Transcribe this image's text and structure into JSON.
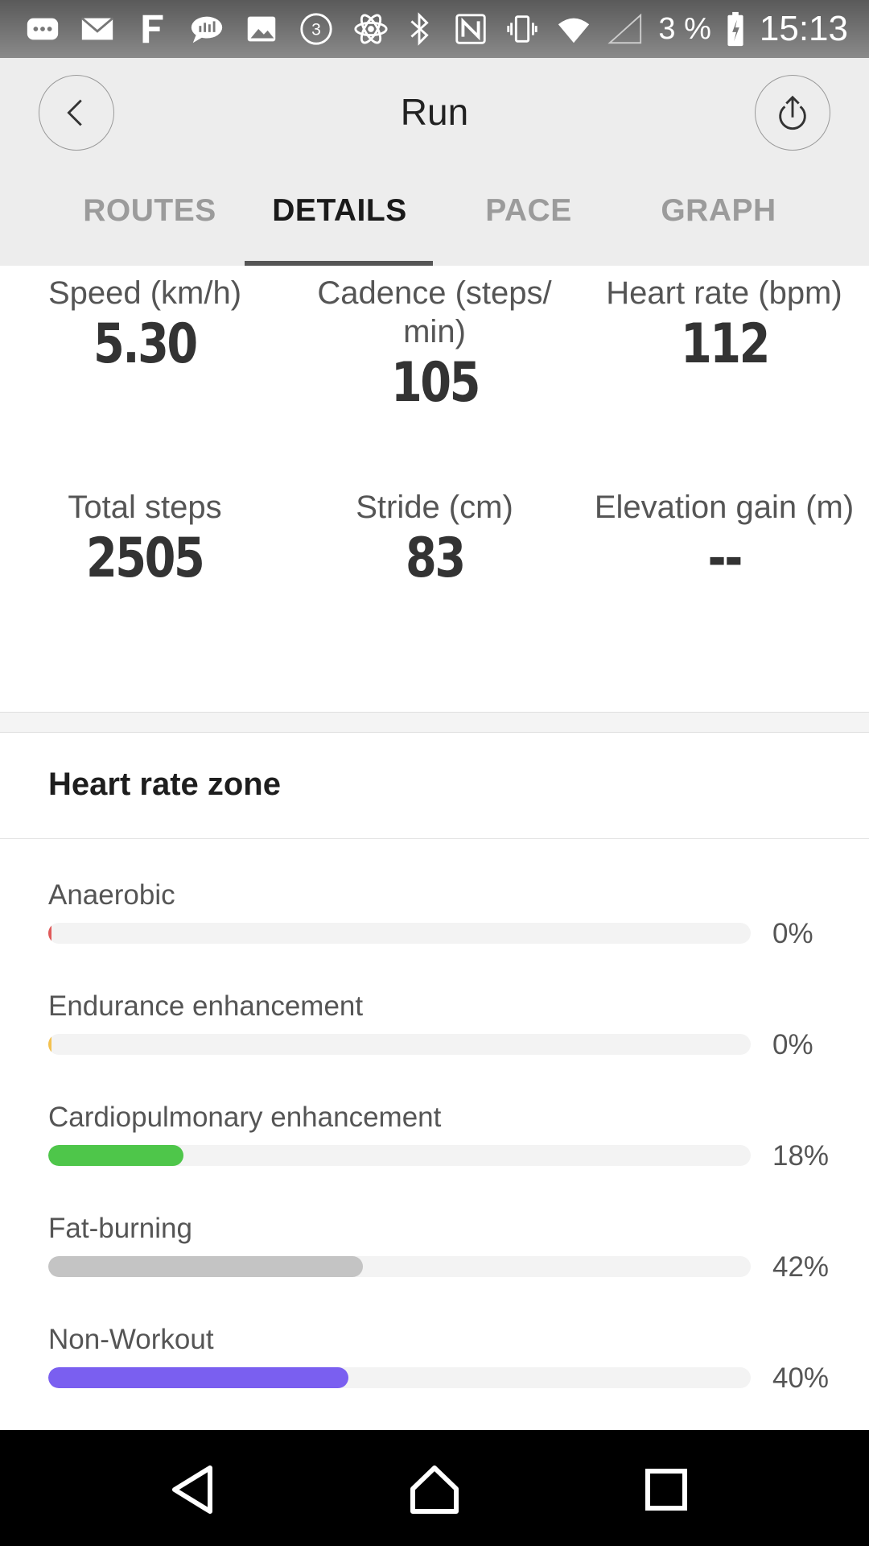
{
  "status_bar": {
    "battery_text": "3 %",
    "time": "15:13",
    "icons": [
      "chat-icon",
      "mail-icon",
      "f-app-icon",
      "message-icon",
      "image-icon",
      "circle-3-icon",
      "atom-icon",
      "bluetooth-icon",
      "nfc-icon",
      "vibrate-icon",
      "wifi-icon",
      "signal-icon",
      "battery-icon"
    ],
    "badge": "3"
  },
  "header": {
    "title": "Run",
    "tabs": [
      {
        "label": "ROUTES",
        "active": false
      },
      {
        "label": "DETAILS",
        "active": true
      },
      {
        "label": "PACE",
        "active": false
      },
      {
        "label": "GRAPH",
        "active": false
      }
    ]
  },
  "metrics": [
    {
      "label": "Speed (km/h)",
      "value": "5.30"
    },
    {
      "label": "Cadence (steps/\nmin)",
      "value": "105"
    },
    {
      "label": "Heart rate (bpm)",
      "value": "112"
    },
    {
      "label": "Total steps",
      "value": "2505"
    },
    {
      "label": "Stride (cm)",
      "value": "83"
    },
    {
      "label": "Elevation gain (m)",
      "value": "--"
    }
  ],
  "heart_rate_zone": {
    "title": "Heart rate zone",
    "zones": [
      {
        "label": "Anaerobic",
        "percent": "0%",
        "fraction": 0.0,
        "color": "#e05a5a"
      },
      {
        "label": "Endurance enhancement",
        "percent": "0%",
        "fraction": 0.0,
        "color": "#f3c14f"
      },
      {
        "label": "Cardiopulmonary enhancement",
        "percent": "18%",
        "fraction": 0.18,
        "color": "#4ec64a"
      },
      {
        "label": "Fat-burning",
        "percent": "42%",
        "fraction": 0.42,
        "color": "#c4c4c4"
      },
      {
        "label": "Non-Workout",
        "percent": "40%",
        "fraction": 0.4,
        "color": "#7a5ff0"
      }
    ]
  }
}
